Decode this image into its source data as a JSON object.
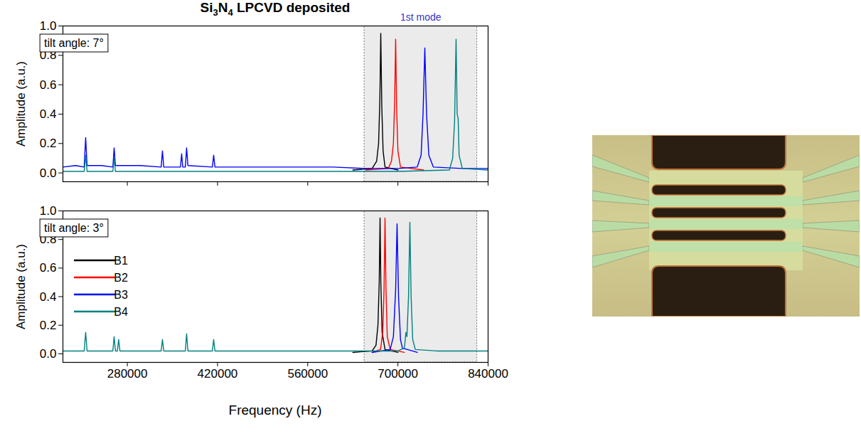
{
  "chart_data": [
    {
      "type": "line",
      "title": "Si3N4 LPCVD deposited",
      "y_label": "Amplitude (a.u.)",
      "annotations": [
        "tilt angle: 7°"
      ],
      "shaded_region": {
        "x": [
          648000,
          823000
        ],
        "label": "1st mode"
      },
      "xlim": [
        180000,
        840000
      ],
      "xticks": [
        280000,
        420000,
        560000,
        700000,
        840000
      ],
      "ylim": [
        -0.06,
        1
      ],
      "yticks": [
        {
          "value": 0,
          "label": "0.0"
        },
        0.2,
        0.4,
        0.6,
        0.8,
        {
          "value": 1,
          "label": "1.0"
        }
      ],
      "tick_labels": "y",
      "series": [
        {
          "name": "B1",
          "color": "#000000",
          "x": [
            630000,
            660000,
            667000,
            670000,
            672000,
            673400,
            675000,
            677000,
            680000,
            700000
          ],
          "values": [
            0.02,
            0.03,
            0.08,
            0.2,
            0.5,
            0.95,
            0.45,
            0.15,
            0.04,
            0.02
          ]
        },
        {
          "name": "B2",
          "color": "#ff0000",
          "x": [
            650000,
            685000,
            690000,
            693000,
            695000,
            696500,
            698000,
            700000,
            704000,
            740000
          ],
          "values": [
            0.02,
            0.03,
            0.08,
            0.2,
            0.5,
            0.91,
            0.45,
            0.15,
            0.04,
            0.02
          ]
        },
        {
          "name": "B3",
          "color": "#0000ff",
          "x": [
            180000,
            200000,
            213000,
            215300,
            217500,
            240000,
            257500,
            259500,
            261500,
            300000,
            332500,
            334500,
            336500,
            362500,
            364300,
            366000,
            370000,
            372000,
            374000,
            412000,
            414000,
            416000,
            500000,
            600000,
            650000,
            700000,
            730000,
            736000,
            739000,
            741800,
            744500,
            748000,
            755000,
            800000,
            840000
          ],
          "values": [
            0.04,
            0.05,
            0.04,
            0.24,
            0.05,
            0.05,
            0.04,
            0.17,
            0.05,
            0.05,
            0.04,
            0.15,
            0.04,
            0.04,
            0.13,
            0.04,
            0.04,
            0.17,
            0.05,
            0.04,
            0.12,
            0.04,
            0.04,
            0.04,
            0.03,
            0.03,
            0.04,
            0.12,
            0.4,
            0.85,
            0.4,
            0.12,
            0.04,
            0.03,
            0.03
          ]
        },
        {
          "name": "B4",
          "color": "#008080",
          "x": [
            180000,
            213000,
            215300,
            217500,
            257500,
            259500,
            261500,
            700000,
            780000,
            785000,
            788000,
            790300,
            792000,
            793500,
            795000,
            800000,
            840000
          ],
          "values": [
            0.01,
            0.01,
            0.12,
            0.01,
            0.01,
            0.1,
            0.01,
            0.01,
            0.02,
            0.1,
            0.35,
            0.91,
            0.4,
            0.37,
            0.12,
            0.03,
            0.02
          ]
        }
      ]
    },
    {
      "type": "line",
      "x_label": "Frequency (Hz)",
      "y_label": "Amplitude (a.u.)",
      "annotations": [
        "tilt angle: 3°"
      ],
      "shaded_region": {
        "x": [
          648000,
          823000
        ]
      },
      "legend": "top-left",
      "xlim": [
        180000,
        840000
      ],
      "xticks": [
        280000,
        420000,
        560000,
        700000,
        840000
      ],
      "ylim": [
        -0.06,
        1
      ],
      "yticks": [
        {
          "value": 0,
          "label": "0.0"
        },
        0.2,
        0.4,
        0.6,
        0.8,
        {
          "value": 1,
          "label": "1.0"
        }
      ],
      "series": [
        {
          "name": "B1",
          "color": "#000000",
          "x": [
            630000,
            660000,
            666000,
            669000,
            671000,
            672300,
            673500,
            675500,
            680000,
            700000
          ],
          "values": [
            0.01,
            0.02,
            0.06,
            0.2,
            0.5,
            0.95,
            0.5,
            0.15,
            0.03,
            0.01
          ]
        },
        {
          "name": "B2",
          "color": "#ff0000",
          "x": [
            660000,
            673000,
            676500,
            678500,
            680000,
            681500,
            683500,
            688000,
            710000
          ],
          "values": [
            0.01,
            0.03,
            0.15,
            0.45,
            0.95,
            0.45,
            0.12,
            0.03,
            0.01
          ]
        },
        {
          "name": "B3",
          "color": "#0000ff",
          "x": [
            660000,
            688000,
            693000,
            696500,
            698700,
            701000,
            704000,
            707000,
            730000
          ],
          "values": [
            0.01,
            0.03,
            0.12,
            0.45,
            0.91,
            0.4,
            0.1,
            0.04,
            0.01
          ]
        },
        {
          "name": "B4",
          "color": "#008080",
          "x": [
            180000,
            213000,
            215300,
            217500,
            257500,
            259500,
            261500,
            264500,
            266500,
            268500,
            332500,
            334500,
            336500,
            370000,
            372000,
            374000,
            412000,
            414000,
            416000,
            500000,
            700000,
            710000,
            712500,
            714000,
            716500,
            718600,
            720500,
            723000,
            727000,
            760000,
            840000
          ],
          "values": [
            0.02,
            0.02,
            0.15,
            0.02,
            0.02,
            0.12,
            0.02,
            0.02,
            0.1,
            0.02,
            0.02,
            0.1,
            0.02,
            0.02,
            0.14,
            0.02,
            0.02,
            0.1,
            0.02,
            0.02,
            0.02,
            0.04,
            0.15,
            0.12,
            0.4,
            0.92,
            0.4,
            0.1,
            0.03,
            0.02,
            0.02
          ]
        }
      ]
    }
  ]
}
